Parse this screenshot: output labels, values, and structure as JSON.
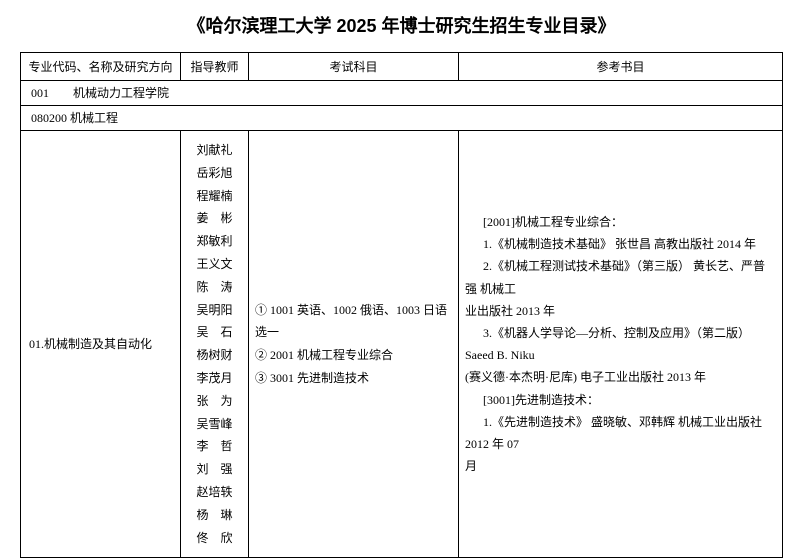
{
  "title": "《哈尔滨理工大学 2025 年博士研究生招生专业目录》",
  "headers": {
    "col1": "专业代码、名称及研究方向",
    "col2": "指导教师",
    "col3": "考试科目",
    "col4": "参考书目"
  },
  "dept": "001　　机械动力工程学院",
  "major": "080200 机械工程",
  "direction": "01.机械制造及其自动化",
  "advisors": "刘献礼\n岳彩旭\n程耀楠\n姜　彬\n郑敏利\n王义文\n陈　涛\n吴明阳\n吴　石\n杨树财\n李茂月\n张　为\n吴雪峰\n李　哲\n刘　强\n赵培轶\n杨　琳\n佟　欣",
  "subjects": {
    "line1": "① 1001 英语、1002 俄语、1003 日语选一",
    "line2": "② 2001 机械工程专业综合",
    "line3": "③ 3001 先进制造技术"
  },
  "refs": {
    "l1": "[2001]机械工程专业综合：",
    "l2": "1.《机械制造技术基础》 张世昌 高教出版社 2014 年",
    "l3": "2.《机械工程测试技术基础》（第三版） 黄长艺、严普强 机械工",
    "l3b": "业出版社 2013 年",
    "l4": "3.《机器人学导论—分析、控制及应用》（第二版）Saeed B. Niku",
    "l4b": "(赛义德·本杰明·尼库) 电子工业出版社 2013 年",
    "l5": "[3001]先进制造技术：",
    "l6": "1.《先进制造技术》 盛晓敏、邓韩辉 机械工业出版社 2012 年 07",
    "l6b": "月"
  }
}
